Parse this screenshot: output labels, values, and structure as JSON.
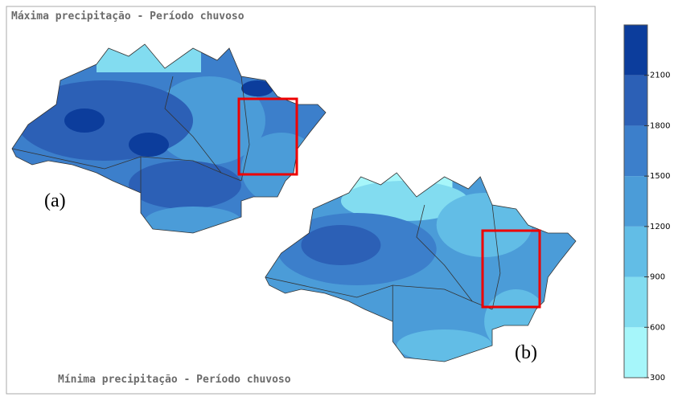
{
  "titles": {
    "top": "Máxima precipitação - Período chuvoso",
    "bottom": "Mínima precipitação - Período chuvoso"
  },
  "labels": {
    "a": "(a)",
    "b": "(b)"
  },
  "colorbar": {
    "lim": [
      300,
      2400
    ],
    "ticks": [
      300,
      600,
      900,
      1200,
      1500,
      1800,
      2100
    ],
    "colors": [
      "#a6f6fa",
      "#82dcf0",
      "#62bde6",
      "#4b9cd8",
      "#3c7fcb",
      "#2c60b6",
      "#0c3d9c"
    ]
  }
}
